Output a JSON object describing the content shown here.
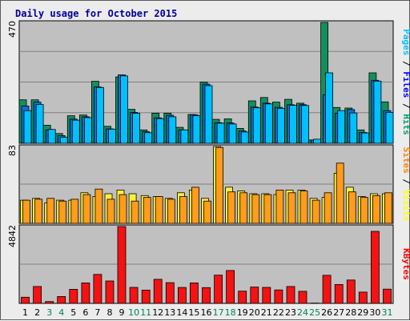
{
  "chart_data": {
    "type": "bar",
    "title": "Daily usage for October 2015",
    "categories": [
      "1",
      "2",
      "3",
      "4",
      "5",
      "6",
      "7",
      "8",
      "9",
      "10",
      "11",
      "12",
      "13",
      "14",
      "15",
      "16",
      "17",
      "18",
      "19",
      "20",
      "21",
      "22",
      "23",
      "24",
      "25",
      "26",
      "27",
      "28",
      "29",
      "30",
      "31"
    ],
    "weekend_days": [
      "3",
      "4",
      "10",
      "11",
      "17",
      "18",
      "24",
      "25",
      "31"
    ],
    "panels": [
      {
        "id": "hits-files-pages",
        "max_label": "470",
        "ymax": 470,
        "label_parts": [
          {
            "text": "Pages",
            "color": "#00c0ff"
          },
          {
            "text": " / ",
            "color": "#000000"
          },
          {
            "text": "Files",
            "color": "#0000ff"
          },
          {
            "text": " / ",
            "color": "#000000"
          },
          {
            "text": "Hits",
            "color": "#00a070"
          }
        ],
        "series": [
          {
            "name": "Hits",
            "color": "#138f5d",
            "values": [
              169,
              169,
              70,
              38,
              107,
              110,
              241,
              66,
              258,
              132,
              52,
              117,
              117,
              62,
              112,
              238,
              93,
              95,
              58,
              165,
              178,
              160,
              171,
              156,
              13,
              470,
              139,
              137,
              52,
              274,
              161
            ]
          },
          {
            "name": "Files",
            "color": "#0e6fd8",
            "values": [
              145,
              160,
              52,
              30,
              94,
              103,
              219,
              56,
              266,
              120,
              45,
              99,
              109,
              52,
              111,
              230,
              80,
              79,
              48,
              141,
              156,
              140,
              150,
              150,
              12,
              189,
              117,
              131,
              42,
              245,
              127
            ]
          },
          {
            "name": "Pages",
            "color": "#00c0ff",
            "values": [
              127,
              151,
              54,
              24,
              90,
              100,
              217,
              55,
              262,
              117,
              41,
              96,
              103,
              52,
              107,
              224,
              78,
              75,
              44,
              138,
              153,
              136,
              148,
              147,
              16,
              274,
              127,
              118,
              40,
              242,
              120
            ]
          }
        ]
      },
      {
        "id": "visits-sites",
        "max_label": "83",
        "ymax": 83,
        "label_parts": [
          {
            "text": "Sites",
            "color": "#ff8000"
          },
          {
            "text": " / ",
            "color": "#000000"
          },
          {
            "text": "Visits",
            "color": "#ffff00"
          }
        ],
        "series": [
          {
            "name": "Visits",
            "color": "#ffef3a",
            "values": [
              25,
              27,
              22,
              25,
              25,
              33,
              29,
              32,
              36,
              32,
              30,
              29,
              27,
              33,
              36,
              27,
              83,
              39,
              35,
              32,
              32,
              31,
              36,
              36,
              27,
              28,
              54,
              39,
              29,
              32,
              32
            ]
          },
          {
            "name": "Sites",
            "color": "#ff9c1a",
            "values": [
              25,
              26,
              27,
              24,
              26,
              31,
              37,
              26,
              31,
              24,
              28,
              29,
              26,
              29,
              39,
              24,
              82,
              34,
              33,
              31,
              31,
              36,
              33,
              35,
              25,
              33,
              65,
              34,
              28,
              30,
              33
            ]
          }
        ]
      },
      {
        "id": "kbytes",
        "max_label": "4842",
        "ymax": 4842,
        "label_parts": [
          {
            "text": "KBytes",
            "color": "#ff0000"
          }
        ],
        "series": [
          {
            "name": "KBytes",
            "color": "#f51212",
            "values": [
              388,
              1066,
              118,
              436,
              886,
              1293,
              1824,
              1411,
              4842,
              1010,
              837,
              1517,
              1308,
              1005,
              1291,
              993,
              1782,
              2075,
              772,
              1027,
              1010,
              846,
              1063,
              763,
              22,
              1771,
              1190,
              1471,
              712,
              4539,
              897
            ]
          }
        ]
      }
    ]
  }
}
